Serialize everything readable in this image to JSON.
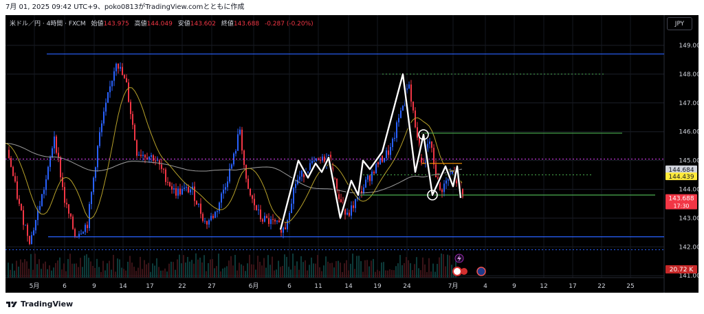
{
  "caption": "7月 01, 2025 09:42 UTC+9、poko0813がTradingView.comとともに作成",
  "legend": {
    "symbol": "米ドル／円 · 4時間 · FXCM",
    "open_label": "始値",
    "open": "143.975",
    "high_label": "高値",
    "high": "144.049",
    "low_label": "安値",
    "low": "143.602",
    "close_label": "終値",
    "close": "143.688",
    "change": "-0.287 (-0.20%)"
  },
  "currency_button": "JPY",
  "footer_brand": "TradingView",
  "colors": {
    "background": "#000000",
    "up": "#2962ff",
    "down": "#f23645",
    "blue_line": "#2962ff",
    "green_line": "#4caf50",
    "orange_line": "#ff9800",
    "ma_fast": "#b8a22a",
    "ma_slow": "#9e9e9e",
    "zigzag": "#ffffff",
    "magenta_dotted": "#e040fb"
  },
  "chart_data": {
    "type": "candlestick",
    "y_ticks": [
      "149.000",
      "148.000",
      "147.000",
      "146.000",
      "145.000",
      "144.000",
      "143.000",
      "142.000",
      "141.000"
    ],
    "x_ticks": [
      "5月",
      "6",
      "9",
      "14",
      "17",
      "22",
      "27",
      "6月",
      "6",
      "11",
      "14",
      "19",
      "24",
      "7月",
      "4",
      "9",
      "12",
      "17",
      "22",
      "25"
    ],
    "ylim": [
      141.0,
      149.6
    ],
    "price_labels": [
      {
        "text": "144.684",
        "value": 144.684,
        "style": "grey"
      },
      {
        "text": "144.439",
        "value": 144.439,
        "style": "yellow"
      },
      {
        "text": "143.688",
        "value": 143.688,
        "sub": "17:30",
        "style": "red"
      }
    ],
    "volume_label": "20.72 K",
    "horizontal_lines": [
      {
        "value": 148.7,
        "color": "blue"
      },
      {
        "value": 142.35,
        "color": "blue"
      },
      {
        "value": 145.95,
        "color": "green"
      },
      {
        "value": 143.8,
        "color": "green"
      },
      {
        "value": 144.9,
        "color": "orange"
      }
    ],
    "dotted_lines": [
      {
        "value": 148.0,
        "color": "green"
      },
      {
        "value": 144.5,
        "color": "green"
      },
      {
        "value": 145.05,
        "color": "magenta"
      },
      {
        "value": 141.9,
        "color": "blue"
      }
    ],
    "zigzag_points": [
      {
        "value": 142.6
      },
      {
        "value": 145.0
      },
      {
        "value": 144.4
      },
      {
        "value": 144.9
      },
      {
        "value": 144.6
      },
      {
        "value": 145.1
      },
      {
        "value": 143.0
      },
      {
        "value": 144.3
      },
      {
        "value": 143.8
      },
      {
        "value": 145.0
      },
      {
        "value": 144.7
      },
      {
        "value": 145.3
      },
      {
        "value": 148.0
      },
      {
        "value": 144.6
      },
      {
        "value": 145.9
      },
      {
        "value": 143.8
      },
      {
        "value": 144.8
      },
      {
        "value": 144.1
      },
      {
        "value": 144.8
      },
      {
        "value": 143.7
      }
    ],
    "circled_levels": [
      145.9,
      143.8
    ]
  }
}
